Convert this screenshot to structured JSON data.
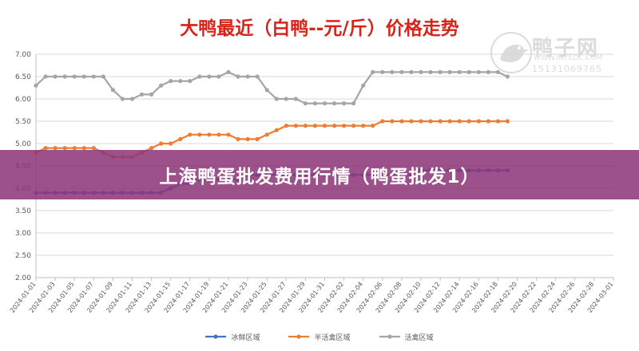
{
  "chart_data": {
    "type": "line",
    "title": "大鸭最近（白鸭--元/斤）价格走势",
    "ylim": [
      2.0,
      7.0
    ],
    "yticks": [
      "2.00",
      "2.50",
      "3.00",
      "3.50",
      "4.00",
      "4.50",
      "5.00",
      "5.50",
      "6.00",
      "6.50",
      "7.00"
    ],
    "x_tick_labels": [
      "2024-01-01",
      "2024-01-03",
      "2024-01-05",
      "2024-01-07",
      "2024-01-09",
      "2024-01-11",
      "2024-01-13",
      "2024-01-15",
      "2024-01-17",
      "2024-01-19",
      "2024-01-21",
      "2024-01-23",
      "2024-01-25",
      "2024-01-27",
      "2024-01-29",
      "2024-01-31",
      "2024-02-02",
      "2024-02-04",
      "2024-02-06",
      "2024-02-08",
      "2024-02-10",
      "2024-02-12",
      "2024-02-14",
      "2024-02-16",
      "2024-02-18",
      "2024-02-20",
      "2024-02-22",
      "2024-02-24",
      "2024-02-26",
      "2024-02-28",
      "2024-03-01"
    ],
    "grid": true,
    "legend_position": "bottom",
    "series": [
      {
        "name": "冰鲜区域",
        "color": "#4472c4",
        "values": [
          3.9,
          3.9,
          3.9,
          3.9,
          3.9,
          3.9,
          3.9,
          3.9,
          3.9,
          3.9,
          3.9,
          3.9,
          3.9,
          3.9,
          4.0,
          4.1,
          4.1,
          4.2,
          4.2,
          4.2,
          4.2,
          4.2,
          4.3,
          4.3,
          4.3,
          4.3,
          4.3,
          4.3,
          4.3,
          4.3,
          4.3,
          4.3,
          4.3,
          4.3,
          4.3,
          4.3,
          4.3,
          4.3,
          4.3,
          4.3,
          4.4,
          4.4,
          4.4,
          4.4,
          4.4,
          4.4,
          4.4,
          4.4,
          4.4,
          4.4
        ]
      },
      {
        "name": "半活禽区域",
        "color": "#ed7d31",
        "values": [
          4.8,
          4.9,
          4.9,
          4.9,
          4.9,
          4.9,
          4.9,
          4.8,
          4.7,
          4.7,
          4.7,
          4.8,
          4.9,
          5.0,
          5.0,
          5.1,
          5.2,
          5.2,
          5.2,
          5.2,
          5.2,
          5.1,
          5.1,
          5.1,
          5.2,
          5.3,
          5.4,
          5.4,
          5.4,
          5.4,
          5.4,
          5.4,
          5.4,
          5.4,
          5.4,
          5.4,
          5.5,
          5.5,
          5.5,
          5.5,
          5.5,
          5.5,
          5.5,
          5.5,
          5.5,
          5.5,
          5.5,
          5.5,
          5.5,
          5.5
        ]
      },
      {
        "name": "活禽区域",
        "color": "#a5a5a5",
        "values": [
          6.3,
          6.5,
          6.5,
          6.5,
          6.5,
          6.5,
          6.5,
          6.5,
          6.2,
          6.0,
          6.0,
          6.1,
          6.1,
          6.3,
          6.4,
          6.4,
          6.4,
          6.5,
          6.5,
          6.5,
          6.6,
          6.5,
          6.5,
          6.5,
          6.2,
          6.0,
          6.0,
          6.0,
          5.9,
          5.9,
          5.9,
          5.9,
          5.9,
          5.9,
          6.3,
          6.6,
          6.6,
          6.6,
          6.6,
          6.6,
          6.6,
          6.6,
          6.6,
          6.6,
          6.6,
          6.6,
          6.6,
          6.6,
          6.6,
          6.5
        ]
      }
    ]
  },
  "watermark": {
    "name": "鸭子网",
    "url": "WWW.INTEDC.COM",
    "phone": "15131069765"
  },
  "banner": {
    "text": "上海鸭蛋批发费用行情（鸭蛋批发1）"
  }
}
